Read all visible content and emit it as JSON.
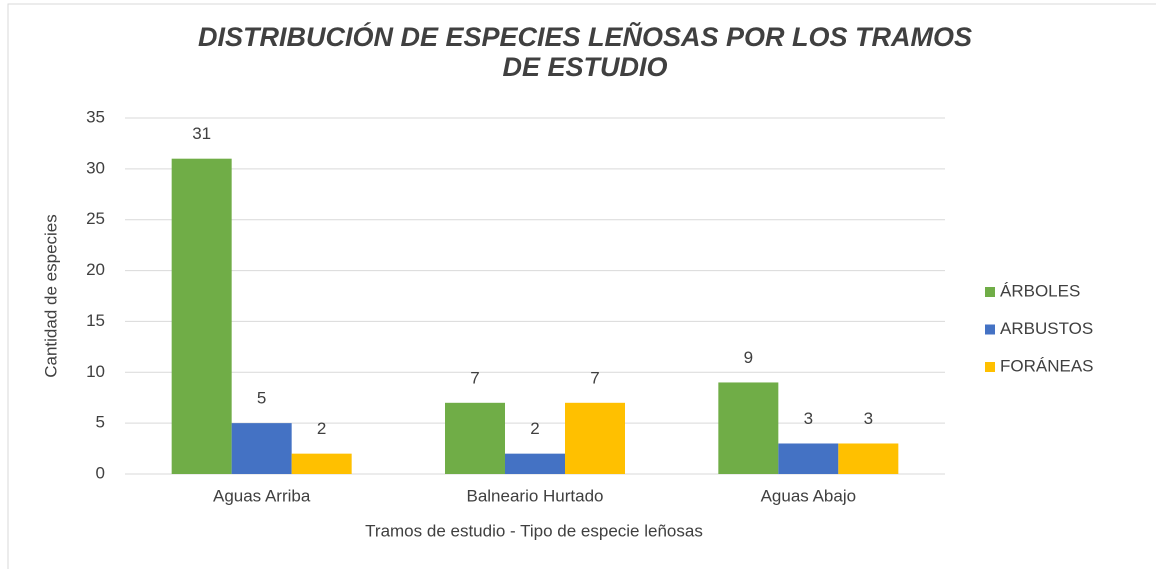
{
  "chart_data": {
    "type": "bar",
    "title": "DISTRIBUCIÓN DE ESPECIES LEÑOSAS POR LOS TRAMOS DE ESTUDIO",
    "x_label": "Tramos de estudio - Tipo de especie leñosas",
    "y_label": "Cantidad de especies",
    "categories": [
      "Aguas Arriba",
      "Balneario Hurtado",
      "Aguas Abajo"
    ],
    "series": [
      {
        "name": "ÁRBOLES",
        "color": "#70ad47",
        "values": [
          31,
          7,
          9
        ]
      },
      {
        "name": "ARBUSTOS",
        "color": "#4472c4",
        "values": [
          5,
          2,
          3
        ]
      },
      {
        "name": "FORÁNEAS",
        "color": "#ffc000",
        "values": [
          2,
          7,
          3
        ]
      }
    ],
    "ylim": [
      0,
      35
    ],
    "yticks": [
      0,
      5,
      10,
      15,
      20,
      25,
      30,
      35
    ],
    "grid": true,
    "legend": "right"
  }
}
